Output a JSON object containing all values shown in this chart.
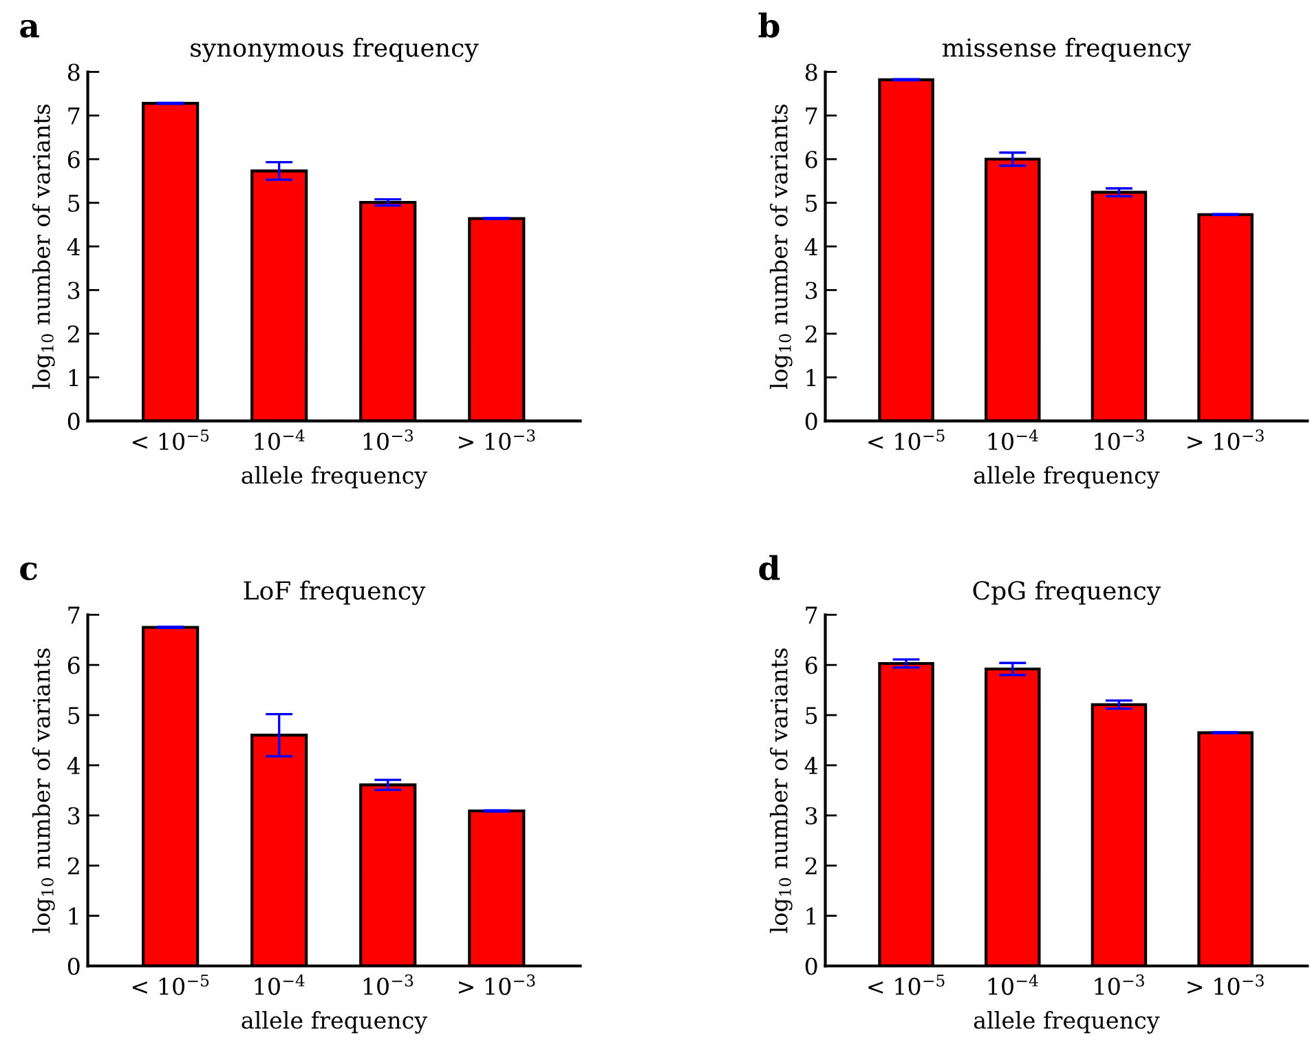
{
  "chart_data": [
    {
      "type": "bar",
      "title": "synonymous frequency",
      "xlabel": "allele frequency",
      "ylabel": "log$_{10}$ number of variants",
      "annotations": [
        "a"
      ],
      "categories": [
        "< 10$^{−5}$",
        "10$^{−4}$",
        "10$^{−3}$",
        "> 10$^{−3}$"
      ],
      "values": [
        7.28,
        5.73,
        5.01,
        4.64
      ],
      "errors": [
        0.01,
        0.2,
        0.07,
        0.01
      ],
      "color": "#ff0000",
      "ylim": [
        0,
        8
      ],
      "yticks": [
        0,
        1,
        2,
        3,
        4,
        5,
        6,
        7,
        8
      ],
      "grid": false,
      "legend": false
    },
    {
      "type": "bar",
      "title": "missense frequency",
      "xlabel": "allele frequency",
      "ylabel": "log$_{10}$ number of variants",
      "annotations": [
        "b"
      ],
      "categories": [
        "< 10$^{−5}$",
        "10$^{−4}$",
        "10$^{−3}$",
        "> 10$^{−3}$"
      ],
      "values": [
        7.82,
        6.0,
        5.24,
        4.73
      ],
      "errors": [
        0.01,
        0.15,
        0.09,
        0.01
      ],
      "color": "#ff0000",
      "ylim": [
        0,
        8
      ],
      "yticks": [
        0,
        1,
        2,
        3,
        4,
        5,
        6,
        7,
        8
      ],
      "grid": false,
      "legend": false
    },
    {
      "type": "bar",
      "title": "LoF frequency",
      "xlabel": "allele frequency",
      "ylabel": "log$_{10}$ number of variants",
      "annotations": [
        "c"
      ],
      "categories": [
        "< 10$^{−5}$",
        "10$^{−4}$",
        "10$^{−3}$",
        "> 10$^{−3}$"
      ],
      "values": [
        6.75,
        4.6,
        3.61,
        3.09
      ],
      "errors": [
        0.01,
        0.42,
        0.1,
        0.01
      ],
      "color": "#ff0000",
      "ylim": [
        0,
        7
      ],
      "yticks": [
        0,
        1,
        2,
        3,
        4,
        5,
        6,
        7
      ],
      "grid": false,
      "legend": false
    },
    {
      "type": "bar",
      "title": "CpG frequency",
      "xlabel": "allele frequency",
      "ylabel": "log$_{10}$ number of variants",
      "annotations": [
        "d"
      ],
      "categories": [
        "< 10$^{−5}$",
        "10$^{−4}$",
        "10$^{−3}$",
        "> 10$^{−3}$"
      ],
      "values": [
        6.03,
        5.92,
        5.21,
        4.65
      ],
      "errors": [
        0.08,
        0.12,
        0.08,
        0.01
      ],
      "color": "#ff0000",
      "ylim": [
        0,
        7
      ],
      "yticks": [
        0,
        1,
        2,
        3,
        4,
        5,
        6,
        7
      ],
      "grid": false,
      "legend": false
    }
  ]
}
